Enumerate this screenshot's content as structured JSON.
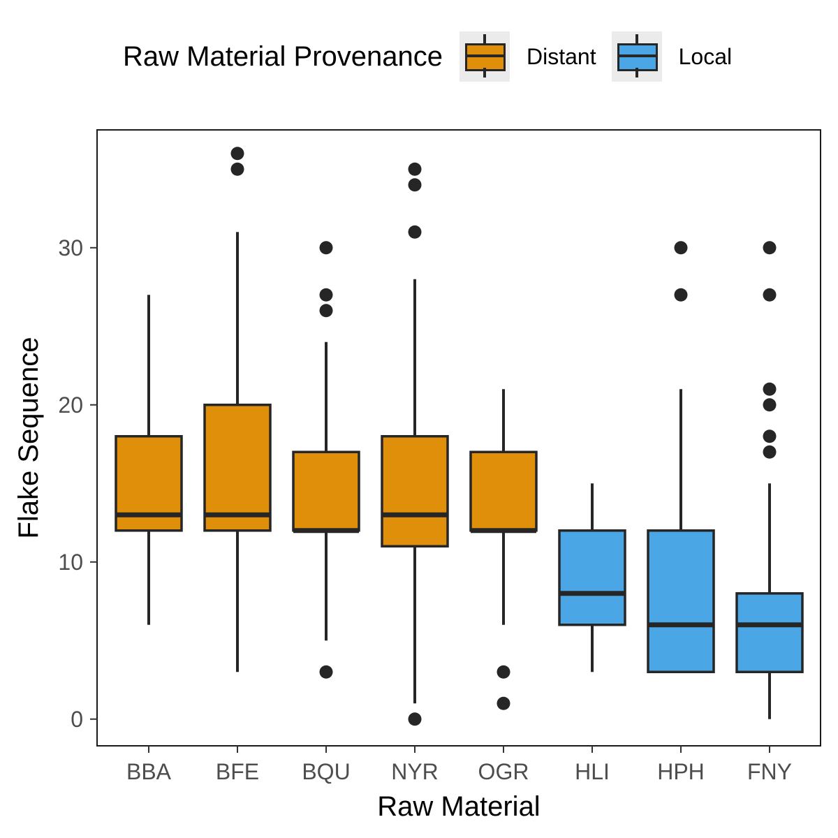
{
  "chart_data": {
    "type": "boxplot",
    "xlabel": "Raw Material",
    "ylabel": "Flake Sequence",
    "ylim": [
      -1.7,
      37.5
    ],
    "y_ticks": [
      0,
      10,
      20,
      30
    ],
    "grid": false,
    "legend": {
      "title": "Raw Material Provenance",
      "position": "top",
      "entries": [
        {
          "label": "Distant",
          "color": "#E08F0A"
        },
        {
          "label": "Local",
          "color": "#4AA6E4"
        }
      ]
    },
    "categories": [
      "BBA",
      "BFE",
      "BQU",
      "NYR",
      "OGR",
      "HLI",
      "HPH",
      "FNY"
    ],
    "boxes": [
      {
        "category": "BBA",
        "group": "Distant",
        "whisker_low": 6,
        "q1": 12,
        "median": 13,
        "q3": 18,
        "whisker_high": 27,
        "outliers": []
      },
      {
        "category": "BFE",
        "group": "Distant",
        "whisker_low": 3,
        "q1": 12,
        "median": 13,
        "q3": 20,
        "whisker_high": 31,
        "outliers": [
          35,
          36
        ]
      },
      {
        "category": "BQU",
        "group": "Distant",
        "whisker_low": 5,
        "q1": 12,
        "median": 12,
        "q3": 17,
        "whisker_high": 24,
        "outliers": [
          3,
          26,
          27,
          30
        ]
      },
      {
        "category": "NYR",
        "group": "Distant",
        "whisker_low": 1,
        "q1": 11,
        "median": 13,
        "q3": 18,
        "whisker_high": 28,
        "outliers": [
          0,
          31,
          34,
          35
        ]
      },
      {
        "category": "OGR",
        "group": "Distant",
        "whisker_low": 6,
        "q1": 12,
        "median": 12,
        "q3": 17,
        "whisker_high": 21,
        "outliers": [
          1,
          3
        ]
      },
      {
        "category": "HLI",
        "group": "Local",
        "whisker_low": 3,
        "q1": 6,
        "median": 8,
        "q3": 12,
        "whisker_high": 15,
        "outliers": []
      },
      {
        "category": "HPH",
        "group": "Local",
        "whisker_low": 3,
        "q1": 3,
        "median": 6,
        "q3": 12,
        "whisker_high": 21,
        "outliers": [
          27,
          30
        ]
      },
      {
        "category": "FNY",
        "group": "Local",
        "whisker_low": 0,
        "q1": 3,
        "median": 6,
        "q3": 8,
        "whisker_high": 15,
        "outliers": [
          17,
          18,
          20,
          21,
          27,
          30
        ]
      }
    ]
  }
}
